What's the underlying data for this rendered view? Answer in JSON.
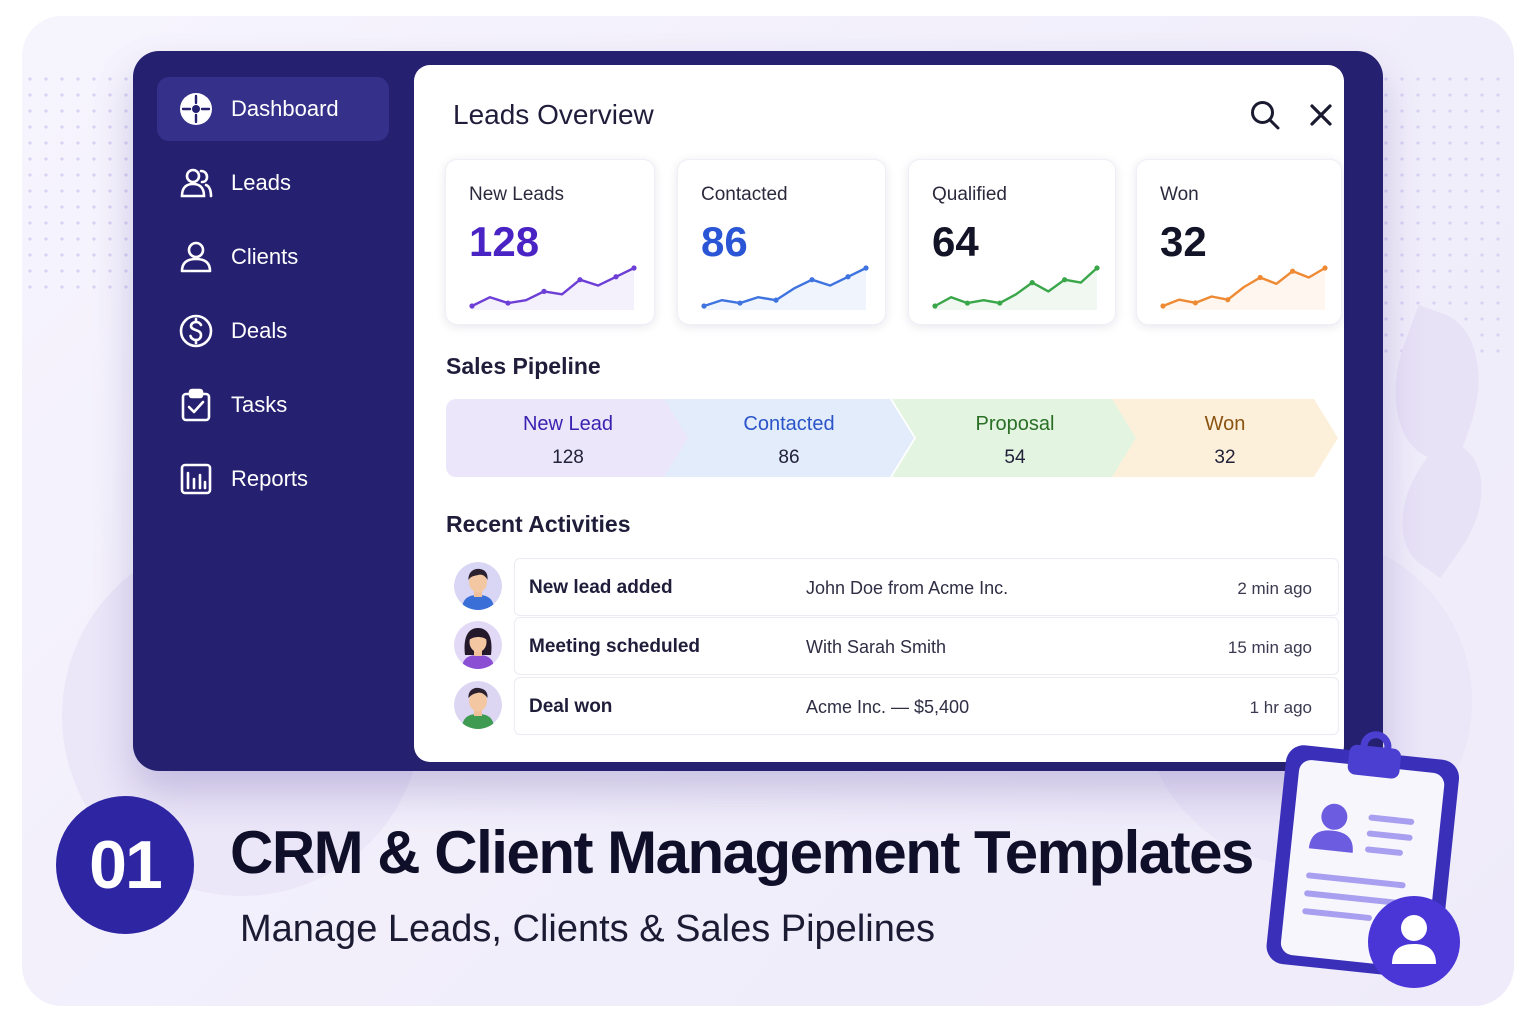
{
  "sidebar": {
    "items": [
      {
        "label": "Dashboard",
        "icon": "dashboard-icon",
        "active": true
      },
      {
        "label": "Leads",
        "icon": "users-icon"
      },
      {
        "label": "Clients",
        "icon": "user-icon"
      },
      {
        "label": "Deals",
        "icon": "dollar-icon"
      },
      {
        "label": "Tasks",
        "icon": "clipboard-check-icon"
      },
      {
        "label": "Reports",
        "icon": "report-chart-icon"
      }
    ]
  },
  "header": {
    "title": "Leads Overview",
    "search_icon": "search-icon",
    "close_icon": "close-icon"
  },
  "stats": [
    {
      "label": "New Leads",
      "value": "128",
      "color": "#4a23c4",
      "line_color": "#6d3fd6",
      "trend": [
        3,
        6,
        4,
        5,
        8,
        7,
        12,
        10,
        13,
        16
      ]
    },
    {
      "label": "Contacted",
      "value": "86",
      "color": "#2a55d4",
      "line_color": "#3f74e0",
      "trend": [
        3,
        5,
        4,
        6,
        5,
        9,
        12,
        10,
        13,
        16
      ]
    },
    {
      "label": "Qualified",
      "value": "64",
      "color": "#141428",
      "line_color": "#3aa64a",
      "trend": [
        3,
        6,
        4,
        5,
        4,
        7,
        11,
        8,
        12,
        11,
        16
      ]
    },
    {
      "label": "Won",
      "value": "32",
      "color": "#141428",
      "line_color": "#ef8a34",
      "trend": [
        3,
        5,
        4,
        6,
        5,
        9,
        12,
        10,
        14,
        12,
        15
      ]
    }
  ],
  "pipeline": {
    "title": "Sales Pipeline",
    "stages": [
      {
        "name": "New Lead",
        "count": "128",
        "bg": "#ebe6fa",
        "fg": "#3a22b0"
      },
      {
        "name": "Contacted",
        "count": "86",
        "bg": "#e3ecfb",
        "fg": "#2a54c8"
      },
      {
        "name": "Proposal",
        "count": "54",
        "bg": "#e3f4e1",
        "fg": "#2b6f27"
      },
      {
        "name": "Won",
        "count": "32",
        "bg": "#fdf0db",
        "fg": "#8a5411"
      }
    ]
  },
  "activities": {
    "title": "Recent Activities",
    "items": [
      {
        "title": "New lead added",
        "detail": "John Doe from Acme Inc.",
        "time": "2 min ago",
        "avatar": "man-avatar"
      },
      {
        "title": "Meeting scheduled",
        "detail": "With Sarah Smith",
        "time": "15 min ago",
        "avatar": "woman-avatar"
      },
      {
        "title": "Deal won",
        "detail": "Acme Inc. — $5,400",
        "time": "1 hr ago",
        "avatar": "man-avatar-green"
      }
    ]
  },
  "footer": {
    "number": "01",
    "headline": "CRM & Client Management Templates",
    "subline": "Manage Leads, Clients & Sales Pipelines"
  },
  "colors": {
    "sidebar_bg": "#262070",
    "sidebar_active": "#353089",
    "accent": "#2e25a3"
  }
}
